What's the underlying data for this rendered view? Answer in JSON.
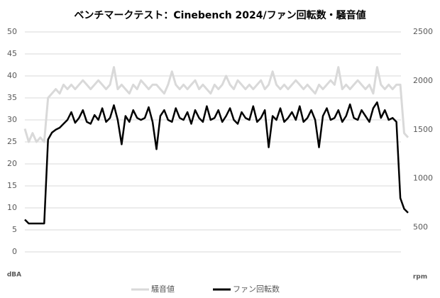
{
  "chart_data": {
    "type": "line",
    "title": "ベンチマークテスト：Cinebench 2024/ファン回転数・騒音値",
    "y_label": "dBA",
    "y2_label": "rpm",
    "ylim": [
      0,
      50
    ],
    "yticks": [
      0,
      5,
      10,
      15,
      20,
      25,
      30,
      35,
      40,
      45,
      50
    ],
    "y2lim": [
      250,
      2500
    ],
    "y2ticks": [
      500,
      1000,
      1500,
      2000,
      2500
    ],
    "grid": true,
    "legend": "bottom",
    "series": [
      {
        "name": "騒音値",
        "color": "#d9d9d9",
        "values": [
          28,
          25,
          27,
          25,
          26,
          25,
          35,
          36,
          37,
          36,
          38,
          37,
          38,
          37,
          38,
          39,
          38,
          37,
          38,
          39,
          38,
          37,
          38,
          42,
          37,
          38,
          37,
          36,
          38,
          37,
          39,
          38,
          37,
          38,
          38,
          37,
          36,
          38,
          41,
          38,
          37,
          38,
          37,
          38,
          39,
          37,
          38,
          37,
          36,
          38,
          37,
          38,
          40,
          38,
          37,
          39,
          38,
          37,
          38,
          37,
          38,
          39,
          37,
          38,
          41,
          38,
          37,
          38,
          37,
          38,
          39,
          38,
          37,
          38,
          37,
          36,
          38,
          37,
          38,
          39,
          38,
          42,
          37,
          38,
          37,
          38,
          39,
          38,
          37,
          38,
          36,
          42,
          38,
          37,
          38,
          37,
          38,
          38,
          27,
          26
        ]
      },
      {
        "name": "ファン回転数",
        "color": "#000000",
        "axis": "y2",
        "values": [
          580,
          540,
          540,
          540,
          540,
          540,
          1400,
          1470,
          1500,
          1520,
          1560,
          1600,
          1680,
          1570,
          1620,
          1700,
          1580,
          1560,
          1650,
          1600,
          1720,
          1580,
          1620,
          1750,
          1600,
          1350,
          1640,
          1580,
          1700,
          1620,
          1600,
          1620,
          1730,
          1580,
          1300,
          1640,
          1700,
          1600,
          1580,
          1720,
          1620,
          1600,
          1680,
          1560,
          1700,
          1620,
          1580,
          1740,
          1600,
          1620,
          1700,
          1580,
          1640,
          1720,
          1600,
          1560,
          1680,
          1620,
          1600,
          1740,
          1580,
          1620,
          1700,
          1320,
          1640,
          1600,
          1720,
          1580,
          1620,
          1680,
          1600,
          1740,
          1580,
          1620,
          1700,
          1600,
          1320,
          1640,
          1720,
          1600,
          1620,
          1700,
          1580,
          1640,
          1760,
          1620,
          1600,
          1700,
          1640,
          1580,
          1720,
          1780,
          1620,
          1700,
          1600,
          1620,
          1580,
          800,
          690,
          650
        ]
      }
    ]
  }
}
